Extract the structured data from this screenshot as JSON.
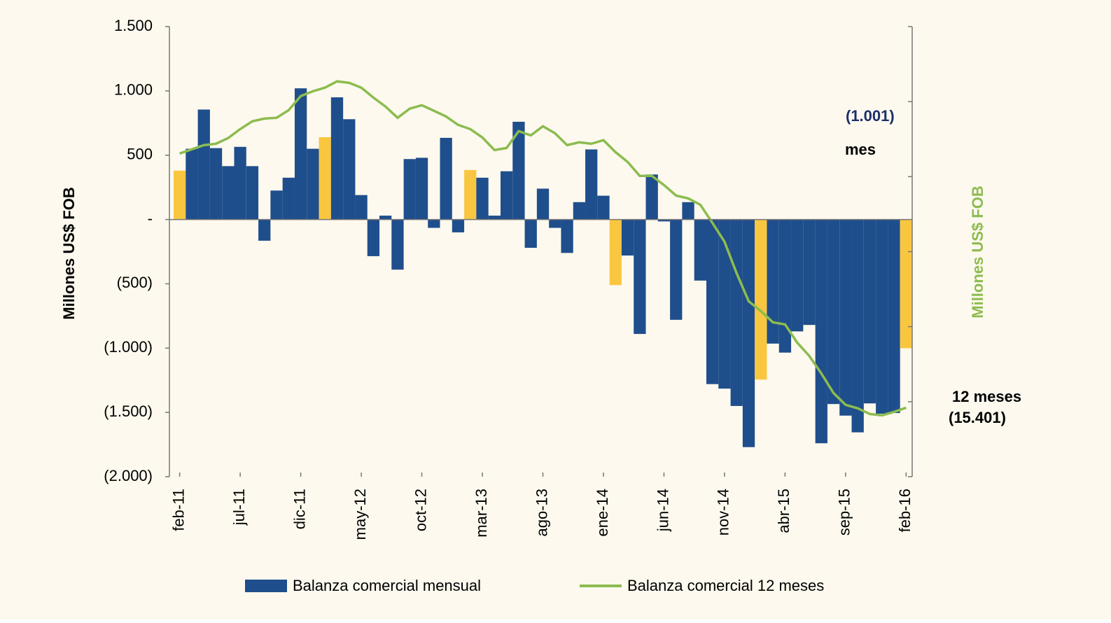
{
  "chart_data": {
    "type": "bar_line",
    "y_label": "Millones US$ FOB",
    "y2_label": "Millones US$ FOB",
    "categories": [
      "feb-11",
      null,
      null,
      null,
      null,
      "jul-11",
      null,
      null,
      null,
      null,
      "dic-11",
      null,
      null,
      null,
      null,
      "may-12",
      null,
      null,
      null,
      null,
      "oct-12",
      null,
      null,
      null,
      null,
      "mar-13",
      null,
      null,
      null,
      null,
      "ago-13",
      null,
      null,
      null,
      null,
      "ene-14",
      null,
      null,
      null,
      null,
      "jun-14",
      null,
      null,
      null,
      null,
      "nov-14",
      null,
      null,
      null,
      null,
      "abr-15",
      null,
      null,
      null,
      null,
      "sep-15",
      null,
      null,
      null,
      null,
      "feb-16"
    ],
    "series": [
      {
        "name": "Balanza comercial mensual",
        "kind": "bar",
        "color": "#1f4e8c",
        "colors": [
          "#f9c73f",
          "#1f4e8c",
          "#1f4e8c",
          "#1f4e8c",
          "#1f4e8c",
          "#1f4e8c",
          "#1f4e8c",
          "#1f4e8c",
          "#1f4e8c",
          "#1f4e8c",
          "#1f4e8c",
          "#1f4e8c",
          "#f9c73f",
          "#1f4e8c",
          "#1f4e8c",
          "#1f4e8c",
          "#1f4e8c",
          "#1f4e8c",
          "#1f4e8c",
          "#1f4e8c",
          "#1f4e8c",
          "#1f4e8c",
          "#1f4e8c",
          "#1f4e8c",
          "#f9c73f",
          "#1f4e8c",
          "#1f4e8c",
          "#1f4e8c",
          "#1f4e8c",
          "#1f4e8c",
          "#1f4e8c",
          "#1f4e8c",
          "#1f4e8c",
          "#1f4e8c",
          "#1f4e8c",
          "#1f4e8c",
          "#f9c73f",
          "#1f4e8c",
          "#1f4e8c",
          "#1f4e8c",
          "#1f4e8c",
          "#1f4e8c",
          "#1f4e8c",
          "#1f4e8c",
          "#1f4e8c",
          "#1f4e8c",
          "#1f4e8c",
          "#1f4e8c",
          "#f9c73f",
          "#1f4e8c",
          "#1f4e8c",
          "#1f4e8c",
          "#1f4e8c",
          "#1f4e8c",
          "#1f4e8c",
          "#1f4e8c",
          "#1f4e8c",
          "#1f4e8c",
          "#1f4e8c",
          "#1f4e8c",
          "#f9c73f"
        ],
        "values": [
          380,
          550,
          855,
          555,
          415,
          565,
          415,
          -165,
          225,
          325,
          1020,
          550,
          640,
          950,
          780,
          190,
          -285,
          30,
          -390,
          470,
          480,
          -65,
          635,
          -100,
          385,
          325,
          30,
          375,
          760,
          -220,
          240,
          -65,
          -260,
          135,
          545,
          185,
          -510,
          -280,
          -890,
          350,
          -15,
          -780,
          135,
          -475,
          -1280,
          -1315,
          -1450,
          -1770,
          -1245,
          -965,
          -1035,
          -870,
          -820,
          -1740,
          -1435,
          -1525,
          -1655,
          -1430,
          -1510,
          -1505,
          -1001
        ],
        "value_labels": [
          null,
          null,
          null,
          null,
          null,
          null,
          null,
          null,
          null,
          null,
          null,
          null,
          null,
          null,
          null,
          null,
          null,
          null,
          null,
          null,
          null,
          null,
          null,
          null,
          null,
          null,
          null,
          null,
          null,
          null,
          null,
          null,
          null,
          null,
          null,
          null,
          null,
          null,
          null,
          null,
          null,
          null,
          null,
          null,
          null,
          null,
          null,
          null,
          null,
          null,
          null,
          null,
          null,
          null,
          null,
          null,
          null,
          null,
          null,
          null,
          "(1.001)"
        ],
        "value_label_color": "#1b2f6b"
      },
      {
        "name": "Balanza comercial 12 meses",
        "kind": "line",
        "axis": "y2",
        "color": "#8cbc4f",
        "values": [
          1540,
          1820,
          2100,
          2190,
          2570,
          3170,
          3690,
          3870,
          3920,
          4430,
          5370,
          5690,
          5930,
          6350,
          6250,
          5930,
          5270,
          4670,
          3920,
          4530,
          4760,
          4390,
          4010,
          3450,
          3170,
          2610,
          1770,
          1910,
          3030,
          2750,
          3360,
          2890,
          2100,
          2290,
          2190,
          2430,
          1630,
          980,
          50,
          50,
          -560,
          -1260,
          -1450,
          -1870,
          -3080,
          -4340,
          -6440,
          -8310,
          -8960,
          -9710,
          -9850,
          -11060,
          -11950,
          -13120,
          -14420,
          -15210,
          -15440,
          -15820,
          -15910,
          -15680,
          -15401
        ],
        "value_labels": [
          null,
          null,
          null,
          null,
          null,
          null,
          null,
          null,
          null,
          null,
          null,
          null,
          null,
          null,
          null,
          null,
          null,
          null,
          null,
          null,
          null,
          null,
          null,
          null,
          null,
          null,
          null,
          null,
          null,
          null,
          null,
          null,
          null,
          null,
          null,
          null,
          null,
          null,
          null,
          null,
          null,
          null,
          null,
          null,
          null,
          null,
          null,
          null,
          null,
          null,
          null,
          null,
          null,
          null,
          null,
          null,
          null,
          null,
          null,
          null,
          "(15.401)"
        ]
      }
    ],
    "annotations": [
      "mes",
      "12 meses"
    ],
    "ylim": [
      -2000,
      1500
    ],
    "yticks": [
      {
        "value": -2000,
        "label": "(2.000)"
      },
      {
        "value": -1500,
        "label": "(1.500)"
      },
      {
        "value": -1000,
        "label": "(1.000)"
      },
      {
        "value": -500,
        "label": "(500)"
      },
      {
        "value": 0,
        "label": "-"
      },
      500,
      {
        "value": 1000,
        "label": "1.000"
      },
      {
        "value": 1500,
        "label": "1.500"
      }
    ],
    "y2lim": [
      -20000,
      10000
    ],
    "y2ticks": [
      -20000,
      -15000,
      -10000,
      -5000,
      0,
      5000,
      10000
    ],
    "y2tick_labels": false,
    "background": "#fdf9ee"
  }
}
